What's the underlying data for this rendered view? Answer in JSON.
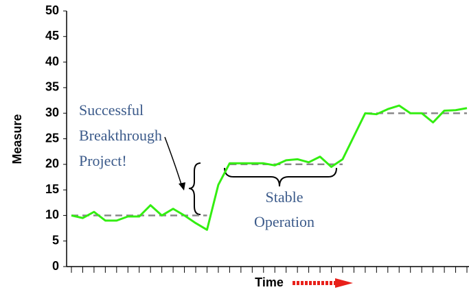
{
  "chart_data": {
    "type": "line",
    "ylabel": "Measure",
    "xlabel": "Time",
    "categories": [
      null,
      null,
      null,
      null,
      null,
      null,
      null,
      null,
      null,
      null,
      null,
      null,
      null,
      null,
      null,
      null,
      null,
      null,
      null,
      null,
      null,
      null,
      null,
      null,
      null,
      null,
      null,
      null,
      null,
      null,
      null,
      null,
      null,
      null,
      null,
      null
    ],
    "series": [
      {
        "name": null,
        "color": "#33ee11",
        "values": [
          10,
          9.5,
          10.7,
          9,
          9,
          9.8,
          9.8,
          12,
          10,
          11.3,
          10,
          8.5,
          7.2,
          16,
          20.2,
          20.2,
          20.2,
          20.2,
          19.8,
          20.8,
          21,
          20.4,
          21.5,
          19.5,
          21,
          25.5,
          30,
          29.8,
          30.8,
          31.5,
          30,
          30,
          28.2,
          30.5,
          30.6,
          31
        ]
      }
    ],
    "levels": [
      {
        "value": 10,
        "start": 0,
        "end": 12
      },
      {
        "value": 20,
        "start": 14,
        "end": 24
      },
      {
        "value": 30,
        "start": 26,
        "end": 35
      }
    ],
    "annotations": [
      [
        "Successful",
        "Breakthrough",
        "Project!"
      ],
      [
        "Stable",
        "Operation"
      ]
    ],
    "ylim": [
      0,
      50
    ],
    "yticks": [
      0,
      5,
      10,
      15,
      20,
      25,
      30,
      35,
      40,
      45,
      50
    ]
  }
}
